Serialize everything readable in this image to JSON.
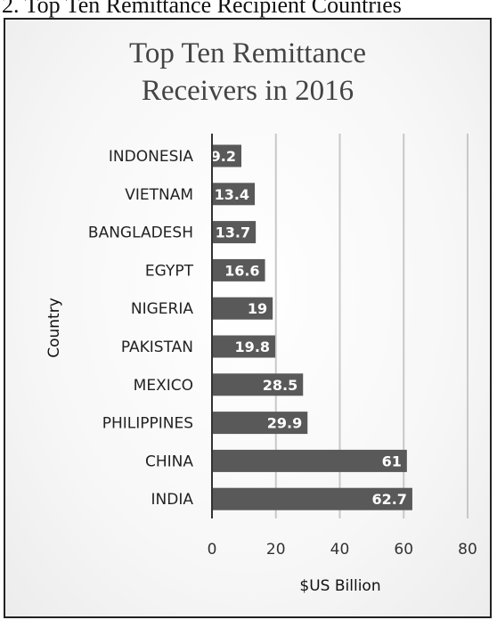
{
  "figure_caption": "2. Top Ten Remittance Recipient Countries",
  "colors": {
    "bar": "#595959",
    "gridline": "#c8c8c8",
    "axis": "#333333"
  },
  "chart_data": {
    "type": "bar",
    "orientation": "horizontal",
    "title_lines": [
      "Top Ten Remittance",
      "Receivers in 2016"
    ],
    "xlabel": "$US Billion",
    "ylabel": "Country",
    "categories": [
      "INDONESIA",
      "VIETNAM",
      "BANGLADESH",
      "EGYPT",
      "NIGERIA",
      "PAKISTAN",
      "MEXICO",
      "PHILIPPINES",
      "CHINA",
      "INDIA"
    ],
    "values": [
      9.2,
      13.4,
      13.7,
      16.6,
      19,
      19.8,
      28.5,
      29.9,
      61,
      62.7
    ],
    "xlim": [
      0,
      80
    ],
    "xticks": [
      0,
      20,
      40,
      60,
      80
    ],
    "grid": true,
    "data_labels": true,
    "legend": "none"
  }
}
